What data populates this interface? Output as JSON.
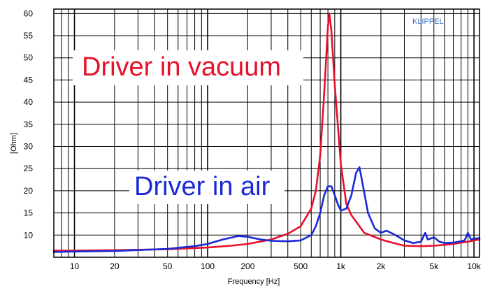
{
  "chart_data": {
    "type": "line",
    "title": "",
    "xlabel": "Frequency [Hz]",
    "ylabel": "[Ohm]",
    "xscale": "log",
    "xlim": [
      7,
      11000
    ],
    "ylim": [
      5,
      61
    ],
    "grid": true,
    "x_ticks": [
      {
        "value": 10,
        "label": "10"
      },
      {
        "value": 20,
        "label": "20"
      },
      {
        "value": 50,
        "label": "50"
      },
      {
        "value": 100,
        "label": "100"
      },
      {
        "value": 200,
        "label": "200"
      },
      {
        "value": 500,
        "label": "500"
      },
      {
        "value": 1000,
        "label": "1k"
      },
      {
        "value": 2000,
        "label": "2k"
      },
      {
        "value": 5000,
        "label": "5k"
      },
      {
        "value": 10000,
        "label": "10k"
      }
    ],
    "y_ticks": [
      10,
      15,
      20,
      25,
      30,
      35,
      40,
      45,
      50,
      55,
      60
    ],
    "watermark": "KLIPPEL",
    "annotations": [
      {
        "text": "Driver in vacuum",
        "color": "#e8102a"
      },
      {
        "text": "Driver in air",
        "color": "#1a2ad6"
      }
    ],
    "series": [
      {
        "key": "vacuum",
        "color": "#e8102a",
        "points": [
          [
            7,
            6.5
          ],
          [
            10,
            6.5
          ],
          [
            20,
            6.6
          ],
          [
            50,
            6.8
          ],
          [
            100,
            7.2
          ],
          [
            150,
            7.6
          ],
          [
            200,
            8.0
          ],
          [
            300,
            9.0
          ],
          [
            400,
            10.3
          ],
          [
            500,
            12.0
          ],
          [
            600,
            16.0
          ],
          [
            650,
            20.0
          ],
          [
            700,
            28.0
          ],
          [
            750,
            42.0
          ],
          [
            800,
            57.0
          ],
          [
            820,
            60.0
          ],
          [
            850,
            56.0
          ],
          [
            900,
            44.0
          ],
          [
            1000,
            26.0
          ],
          [
            1100,
            17.0
          ],
          [
            1200,
            14.5
          ],
          [
            1500,
            10.5
          ],
          [
            2000,
            9.0
          ],
          [
            2500,
            8.2
          ],
          [
            3000,
            7.6
          ],
          [
            4000,
            7.5
          ],
          [
            5000,
            7.6
          ],
          [
            6000,
            7.8
          ],
          [
            7000,
            8.0
          ],
          [
            8000,
            8.3
          ],
          [
            9000,
            8.5
          ],
          [
            10000,
            8.8
          ],
          [
            11000,
            9.0
          ]
        ]
      },
      {
        "key": "air",
        "color": "#1a2ad6",
        "points": [
          [
            7,
            6.2
          ],
          [
            10,
            6.3
          ],
          [
            20,
            6.4
          ],
          [
            50,
            6.9
          ],
          [
            80,
            7.5
          ],
          [
            100,
            8.0
          ],
          [
            130,
            9.0
          ],
          [
            170,
            9.8
          ],
          [
            200,
            9.6
          ],
          [
            250,
            9.0
          ],
          [
            300,
            8.7
          ],
          [
            400,
            8.6
          ],
          [
            500,
            8.8
          ],
          [
            600,
            10.0
          ],
          [
            650,
            12.0
          ],
          [
            700,
            15.0
          ],
          [
            750,
            19.0
          ],
          [
            800,
            21.0
          ],
          [
            850,
            21.0
          ],
          [
            900,
            19.0
          ],
          [
            950,
            17.0
          ],
          [
            1000,
            15.5
          ],
          [
            1100,
            16.0
          ],
          [
            1200,
            19.0
          ],
          [
            1300,
            24.0
          ],
          [
            1380,
            25.3
          ],
          [
            1450,
            22.0
          ],
          [
            1600,
            15.0
          ],
          [
            1800,
            11.5
          ],
          [
            2000,
            10.5
          ],
          [
            2200,
            11.0
          ],
          [
            2500,
            10.2
          ],
          [
            3000,
            8.8
          ],
          [
            3500,
            8.2
          ],
          [
            4000,
            8.5
          ],
          [
            4300,
            10.5
          ],
          [
            4500,
            9.0
          ],
          [
            5000,
            9.5
          ],
          [
            5500,
            8.5
          ],
          [
            6000,
            8.2
          ],
          [
            7000,
            8.3
          ],
          [
            8000,
            8.6
          ],
          [
            8500,
            8.8
          ],
          [
            9000,
            10.5
          ],
          [
            9500,
            9.0
          ],
          [
            10000,
            9.2
          ],
          [
            11000,
            9.3
          ]
        ]
      }
    ]
  }
}
